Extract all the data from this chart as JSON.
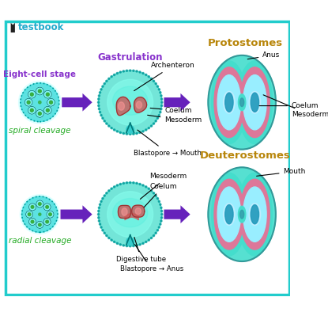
{
  "bg_color": "#ffffff",
  "border_color": "#22cccc",
  "title_color": "#b8860b",
  "purple_color": "#8833cc",
  "green_color": "#22aa22",
  "arrow_color": "#6622bb",
  "cell_fill": "#33dddd",
  "cell_border": "#009999",
  "gastr_outer": "#44ddcc",
  "gastr_inner": "#55eedd",
  "meso_fill": "#cc6666",
  "meso_border": "#993333",
  "proto_outer": "#44ddcc",
  "proto_pink": "#dd8899",
  "proto_cyan": "#88eeff",
  "proto_center_dark": "#3399bb",
  "proto_center_mid": "#66ccee",
  "annotation_color": "#111111",
  "protostomes_title": "Protostomes",
  "deuterostomes_title": "Deuterostomes",
  "gastrulation_label": "Gastrulation",
  "eight_cell_label": "Eight-cell stage",
  "spiral_cleavage_label": "spiral cleavage",
  "radial_cleavage_label": "radial cleavage",
  "testbook_text": "testbook"
}
